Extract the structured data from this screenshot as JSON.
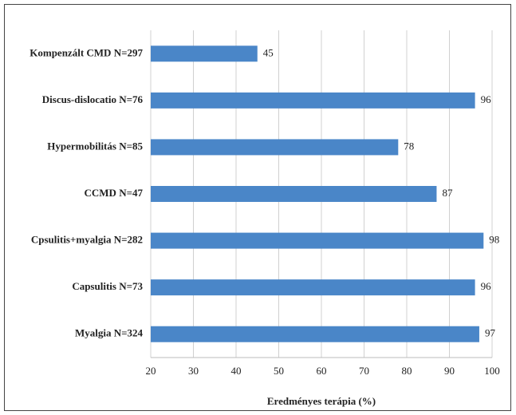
{
  "chart_data": {
    "type": "hbar",
    "x_label": "Eredményes terápia (%)",
    "categories": [
      "Kompenzált CMD N=297",
      "Discus-dislocatio N=76",
      "Hypermobilitás N=85",
      "CCMD N=47",
      "Cpsulitis+myalgia N=282",
      "Capsulitis N=73",
      "Myalgia N=324"
    ],
    "values": [
      45,
      96,
      78,
      87,
      98,
      96,
      97
    ],
    "color": "#4a86c8",
    "xlim": [
      20,
      100
    ],
    "xticks": [
      20,
      30,
      40,
      50,
      60,
      70,
      80,
      90,
      100
    ],
    "grid": true
  }
}
